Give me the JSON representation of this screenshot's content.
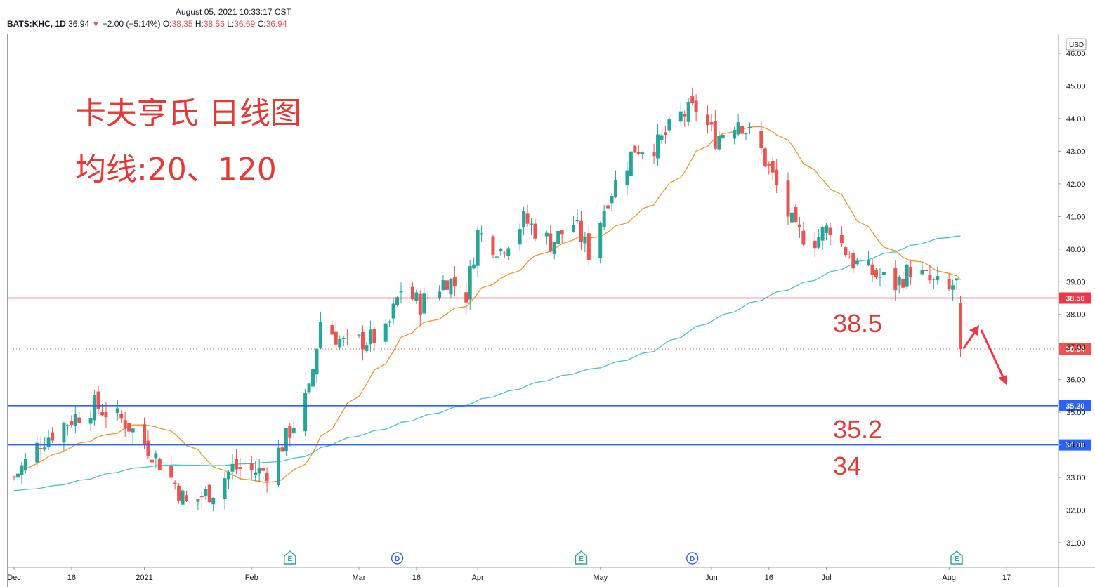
{
  "header": {
    "timestamp": "August 05, 2021 10:33:17 CST",
    "symbol": "BATS:KHC, 1D",
    "last": "36.94",
    "change": "−2.00 (−5.14%)",
    "open_label": "O:",
    "open": "38.35",
    "high_label": "H:",
    "high": "38.56",
    "low_label": "L:",
    "low": "36.69",
    "close_label": "C:",
    "close": "36.94"
  },
  "currency": "USD",
  "annotations": {
    "title": "卡夫亨氏 日线图",
    "subtitle": "均线:20、120",
    "level_1": "38.5",
    "level_2": "35.2",
    "level_3": "34"
  },
  "colors": {
    "up": "#26a69a",
    "down": "#ef5350",
    "ma20": "#f7931e",
    "ma120": "#40c4d8",
    "resistance": "#f23645",
    "support": "#2962ff",
    "annotation": "#e53935"
  },
  "events": [
    {
      "label": "E",
      "date": "2021-02-11"
    },
    {
      "label": "D",
      "date": "2021-03-11"
    },
    {
      "label": "E",
      "date": "2021-04-28"
    },
    {
      "label": "D",
      "date": "2021-05-27"
    },
    {
      "label": "E",
      "date": "2021-08-04"
    }
  ],
  "chart_data": {
    "type": "candlestick",
    "x_axis": {
      "type": "date",
      "ticks": [
        {
          "date": "2020-12-01",
          "label": "Dec"
        },
        {
          "date": "2020-12-16",
          "label": "16"
        },
        {
          "date": "2021-01-04",
          "label": "2021"
        },
        {
          "date": "2021-02-01",
          "label": "Feb"
        },
        {
          "date": "2021-03-01",
          "label": "Mar"
        },
        {
          "date": "2021-03-16",
          "label": "16"
        },
        {
          "date": "2021-04-01",
          "label": "Apr"
        },
        {
          "date": "2021-05-03",
          "label": "May"
        },
        {
          "date": "2021-06-01",
          "label": "Jun"
        },
        {
          "date": "2021-06-16",
          "label": "16"
        },
        {
          "date": "2021-07-01",
          "label": "Jul"
        },
        {
          "date": "2021-08-02",
          "label": "Aug"
        },
        {
          "date": "2021-08-17",
          "label": "17"
        }
      ]
    },
    "y_axis": {
      "ylim": [
        30.6,
        46.1
      ],
      "ticks": [
        "31.00",
        "32.00",
        "33.00",
        "34.00",
        "35.00",
        "36.00",
        "37.00",
        "38.00",
        "39.00",
        "40.00",
        "41.00",
        "42.00",
        "43.00",
        "44.00",
        "45.00",
        "46.00"
      ]
    },
    "horizontal_lines": [
      {
        "value": 38.5,
        "label": "38.50",
        "color": "#f23645"
      },
      {
        "value": 35.2,
        "label": "35.20",
        "color": "#2962ff"
      },
      {
        "value": 34.0,
        "label": "34.00",
        "color": "#2962ff"
      }
    ],
    "last_price": {
      "value": 36.94,
      "label": "36.94"
    },
    "anchors": [
      [
        "2020-12-01",
        33.0
      ],
      [
        "2020-12-08",
        34.1
      ],
      [
        "2020-12-16",
        34.8
      ],
      [
        "2020-12-22",
        35.2
      ],
      [
        "2020-12-30",
        34.7
      ],
      [
        "2021-01-06",
        33.8
      ],
      [
        "2021-01-12",
        32.8
      ],
      [
        "2021-01-15",
        32.2
      ],
      [
        "2021-01-22",
        32.6
      ],
      [
        "2021-01-27",
        33.3
      ],
      [
        "2021-02-01",
        33.2
      ],
      [
        "2021-02-05",
        33.2
      ],
      [
        "2021-02-10",
        34.2
      ],
      [
        "2021-02-16",
        35.6
      ],
      [
        "2021-02-19",
        37.8
      ],
      [
        "2021-02-25",
        37.1
      ],
      [
        "2021-03-03",
        37.2
      ],
      [
        "2021-03-08",
        37.4
      ],
      [
        "2021-03-12",
        38.8
      ],
      [
        "2021-03-17",
        38.3
      ],
      [
        "2021-03-24",
        39.1
      ],
      [
        "2021-03-29",
        38.6
      ],
      [
        "2021-04-01",
        40.5
      ],
      [
        "2021-04-07",
        40.0
      ],
      [
        "2021-04-13",
        40.9
      ],
      [
        "2021-04-20",
        40.2
      ],
      [
        "2021-04-26",
        40.8
      ],
      [
        "2021-04-30",
        39.9
      ],
      [
        "2021-05-05",
        41.6
      ],
      [
        "2021-05-12",
        43.1
      ],
      [
        "2021-05-18",
        43.2
      ],
      [
        "2021-05-24",
        44.1
      ],
      [
        "2021-05-28",
        44.3
      ],
      [
        "2021-06-02",
        43.4
      ],
      [
        "2021-06-08",
        44.0
      ],
      [
        "2021-06-14",
        43.0
      ],
      [
        "2021-06-17",
        42.2
      ],
      [
        "2021-06-23",
        40.5
      ],
      [
        "2021-06-28",
        40.3
      ],
      [
        "2021-07-02",
        40.7
      ],
      [
        "2021-07-08",
        39.6
      ],
      [
        "2021-07-14",
        39.2
      ],
      [
        "2021-07-19",
        38.9
      ],
      [
        "2021-07-23",
        39.4
      ],
      [
        "2021-07-28",
        39.0
      ],
      [
        "2021-08-02",
        38.7
      ],
      [
        "2021-08-03",
        38.9
      ],
      [
        "2021-08-04",
        38.94
      ],
      [
        "2021-08-05",
        36.94
      ]
    ]
  }
}
